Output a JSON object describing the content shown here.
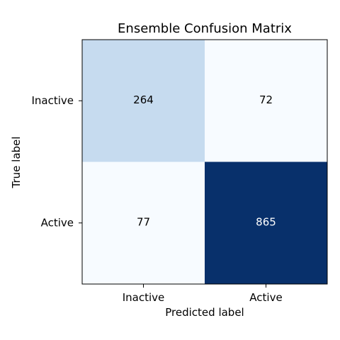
{
  "chart_data": {
    "type": "heatmap",
    "title": "Ensemble Confusion Matrix",
    "xlabel": "Predicted label",
    "ylabel": "True label",
    "x_categories": [
      "Inactive",
      "Active"
    ],
    "y_categories": [
      "Inactive",
      "Active"
    ],
    "values": [
      [
        264,
        72
      ],
      [
        77,
        865
      ]
    ],
    "colormap": "Blues",
    "cell_colors": [
      [
        "#c6dbef",
        "#f7fbff"
      ],
      [
        "#f7fbff",
        "#08306b"
      ]
    ],
    "label_colors": [
      [
        "#000000",
        "#000000"
      ],
      [
        "#000000",
        "#ffffff"
      ]
    ],
    "colorbar": false,
    "grid": false
  }
}
